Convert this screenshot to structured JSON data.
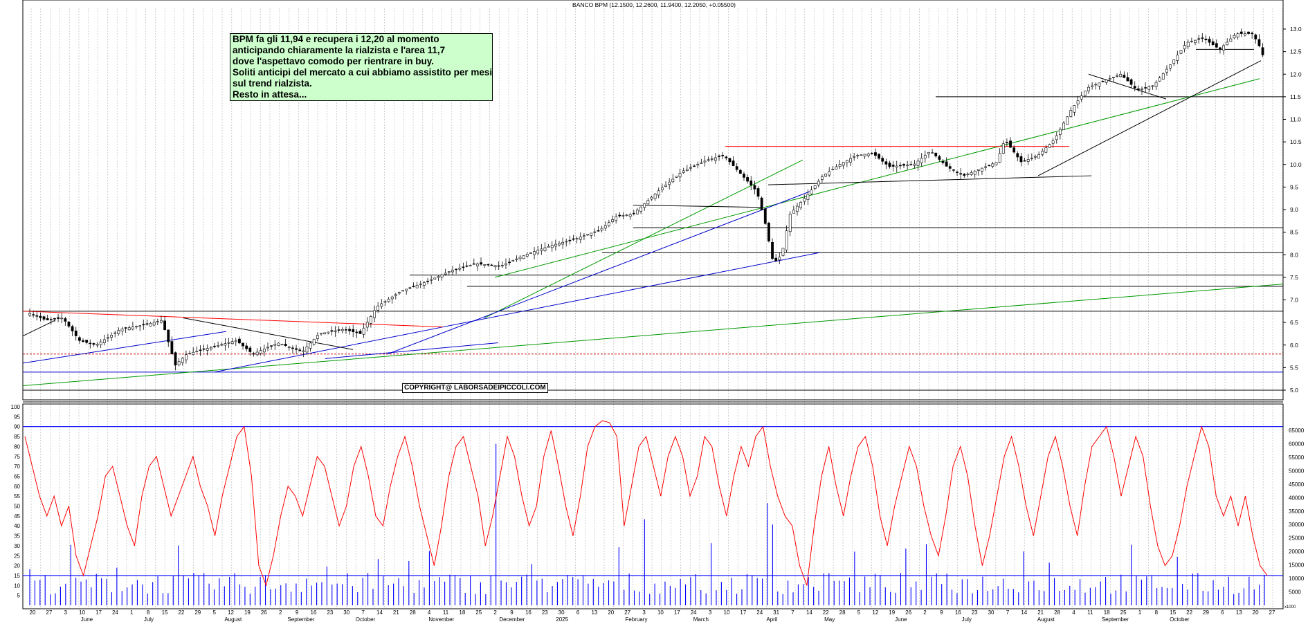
{
  "title": "BANCO BPM (12.1500, 12.2600, 11.9400, 12.2050, +0.05500)",
  "note": {
    "lines": [
      "BPM fa gli 11,94 e recupera i 12,20 al momento",
      "anticipando chiaramente la rialzista e l'area 11,7",
      "dove l'aspettavo comodo per rientrare in buy.",
      "Soliti anticipi del mercato a cui abbiamo assistito per mesi",
      "sul trend rialzista.",
      "Resto in attesa..."
    ]
  },
  "copyright": "COPYRIGHT@ LABORSADEIPICCOLI.COM",
  "volume_axis_label": "x1000",
  "colors": {
    "price_ticks": "#000000",
    "oscillator": "#ff0000",
    "volume": "#0000ff",
    "trend_green": "#009900",
    "trend_blue": "#0000cc",
    "trend_red": "#ff0000",
    "note_bg": "#ccffcc"
  },
  "chart_data": [
    {
      "type": "candlestick",
      "title": "BANCO BPM (12.1500, 12.2600, 11.9400, 12.2050, +0.05500)",
      "ylim": [
        5.0,
        13.0
      ],
      "y_ticks": [
        5.0,
        5.5,
        6.0,
        6.5,
        7.0,
        7.5,
        8.0,
        8.5,
        9.0,
        9.5,
        10.0,
        10.5,
        11.0,
        11.5,
        12.0,
        12.5,
        13.0
      ],
      "last_bar": {
        "open": 12.15,
        "high": 12.26,
        "low": 11.94,
        "close": 12.205,
        "change": 0.055
      },
      "close_path": [
        [
          0,
          6.7
        ],
        [
          10,
          6.55
        ],
        [
          20,
          6.6
        ],
        [
          30,
          6.1
        ],
        [
          40,
          6.0
        ],
        [
          55,
          6.35
        ],
        [
          70,
          6.45
        ],
        [
          80,
          6.55
        ],
        [
          88,
          5.55
        ],
        [
          95,
          5.8
        ],
        [
          110,
          5.95
        ],
        [
          125,
          6.1
        ],
        [
          135,
          5.8
        ],
        [
          150,
          6.05
        ],
        [
          165,
          5.85
        ],
        [
          175,
          6.25
        ],
        [
          190,
          6.35
        ],
        [
          200,
          6.25
        ],
        [
          210,
          6.85
        ],
        [
          225,
          7.2
        ],
        [
          240,
          7.4
        ],
        [
          255,
          7.65
        ],
        [
          270,
          7.8
        ],
        [
          285,
          7.75
        ],
        [
          300,
          8.0
        ],
        [
          315,
          8.2
        ],
        [
          330,
          8.35
        ],
        [
          345,
          8.55
        ],
        [
          355,
          8.85
        ],
        [
          365,
          8.9
        ],
        [
          380,
          9.4
        ],
        [
          395,
          9.85
        ],
        [
          410,
          10.1
        ],
        [
          420,
          10.2
        ],
        [
          430,
          9.8
        ],
        [
          440,
          9.4
        ],
        [
          445,
          8.7
        ],
        [
          450,
          7.8
        ],
        [
          455,
          8.0
        ],
        [
          460,
          8.9
        ],
        [
          470,
          9.3
        ],
        [
          480,
          9.75
        ],
        [
          490,
          10.0
        ],
        [
          500,
          10.2
        ],
        [
          510,
          10.25
        ],
        [
          520,
          9.95
        ],
        [
          535,
          10.0
        ],
        [
          545,
          10.3
        ],
        [
          555,
          9.95
        ],
        [
          565,
          9.75
        ],
        [
          575,
          9.9
        ],
        [
          585,
          10.05
        ],
        [
          590,
          10.55
        ],
        [
          600,
          10.05
        ],
        [
          610,
          10.2
        ],
        [
          620,
          10.55
        ],
        [
          630,
          11.2
        ],
        [
          640,
          11.7
        ],
        [
          650,
          11.85
        ],
        [
          660,
          12.0
        ],
        [
          670,
          11.65
        ],
        [
          680,
          11.75
        ],
        [
          690,
          12.2
        ],
        [
          700,
          12.7
        ],
        [
          710,
          12.8
        ],
        [
          720,
          12.55
        ],
        [
          730,
          12.9
        ],
        [
          740,
          12.9
        ],
        [
          745,
          12.55
        ],
        [
          748,
          12.2
        ]
      ],
      "horizontal_levels": [
        5.0,
        5.4,
        5.8,
        6.75,
        7.3,
        7.55,
        8.05,
        8.6,
        11.5
      ],
      "resistance_red": 10.4,
      "support_black_lines": [
        9.1,
        9.6,
        12.5
      ]
    },
    {
      "type": "line",
      "name": "oscillator",
      "ylim": [
        0,
        100
      ],
      "y_ticks": [
        5,
        10,
        15,
        20,
        25,
        30,
        35,
        40,
        45,
        50,
        55,
        60,
        65,
        70,
        75,
        80,
        85,
        90,
        95,
        100
      ],
      "reference_levels": [
        15,
        90
      ],
      "values": [
        85,
        70,
        55,
        45,
        55,
        40,
        50,
        25,
        15,
        30,
        45,
        65,
        70,
        55,
        40,
        30,
        55,
        70,
        75,
        60,
        45,
        55,
        65,
        75,
        60,
        50,
        35,
        55,
        70,
        85,
        90,
        65,
        20,
        10,
        25,
        45,
        60,
        55,
        45,
        60,
        75,
        70,
        55,
        40,
        50,
        70,
        80,
        65,
        45,
        40,
        60,
        75,
        85,
        70,
        50,
        35,
        20,
        40,
        65,
        80,
        85,
        70,
        55,
        30,
        45,
        65,
        85,
        75,
        55,
        40,
        50,
        75,
        88,
        70,
        50,
        35,
        55,
        80,
        90,
        93,
        92,
        85,
        40,
        60,
        80,
        85,
        70,
        55,
        75,
        85,
        75,
        55,
        65,
        85,
        80,
        60,
        45,
        65,
        80,
        70,
        85,
        90,
        70,
        55,
        45,
        40,
        20,
        10,
        40,
        65,
        80,
        60,
        45,
        65,
        80,
        85,
        70,
        45,
        30,
        50,
        65,
        80,
        70,
        50,
        35,
        25,
        45,
        70,
        80,
        65,
        40,
        20,
        35,
        55,
        75,
        85,
        70,
        50,
        35,
        55,
        75,
        85,
        70,
        50,
        35,
        60,
        80,
        85,
        90,
        75,
        55,
        70,
        85,
        75,
        50,
        30,
        20,
        25,
        40,
        60,
        75,
        90,
        80,
        55,
        45,
        55,
        40,
        55,
        35,
        20,
        15
      ]
    },
    {
      "type": "bar",
      "name": "volume",
      "unit": "x1000",
      "ylim": [
        0,
        65000
      ],
      "y_ticks": [
        5000,
        10000,
        15000,
        20000,
        25000,
        30000,
        35000,
        40000,
        45000,
        50000,
        55000,
        60000,
        65000
      ],
      "spikes": [
        {
          "position": 0.375,
          "value": 60000
        },
        {
          "position": 0.495,
          "value": 32000
        },
        {
          "position": 0.595,
          "value": 38000
        },
        {
          "position": 0.6,
          "value": 30000
        },
        {
          "position": 0.8,
          "value": 20000
        },
        {
          "position": 0.925,
          "value": 18000
        }
      ],
      "typical_value": 9000
    }
  ],
  "x_axis": {
    "day_labels": [
      "20",
      "27",
      "3",
      "10",
      "17",
      "24",
      "1",
      "8",
      "15",
      "22",
      "29",
      "5",
      "12",
      "19",
      "26",
      "2",
      "9",
      "16",
      "23",
      "30",
      "7",
      "14",
      "21",
      "28",
      "4",
      "11",
      "18",
      "25",
      "2",
      "9",
      "16",
      "23",
      "30",
      "6",
      "13",
      "20",
      "27",
      "3",
      "10",
      "17",
      "24",
      "3",
      "10",
      "17",
      "24",
      "31",
      "7",
      "14",
      "22",
      "28",
      "5",
      "12",
      "19",
      "26",
      "2",
      "9",
      "16",
      "23",
      "30",
      "7",
      "14",
      "21",
      "28",
      "4",
      "11",
      "18",
      "25",
      "1",
      "8",
      "15",
      "22",
      "29",
      "6",
      "13",
      "20",
      "27"
    ],
    "month_labels": [
      {
        "label": "June",
        "pos": 0.046
      },
      {
        "label": "July",
        "pos": 0.096
      },
      {
        "label": "August",
        "pos": 0.16
      },
      {
        "label": "September",
        "pos": 0.21
      },
      {
        "label": "October",
        "pos": 0.264
      },
      {
        "label": "November",
        "pos": 0.322
      },
      {
        "label": "December",
        "pos": 0.378
      },
      {
        "label": "2025",
        "pos": 0.423
      },
      {
        "label": "February",
        "pos": 0.478
      },
      {
        "label": "March",
        "pos": 0.532
      },
      {
        "label": "April",
        "pos": 0.59
      },
      {
        "label": "May",
        "pos": 0.636
      },
      {
        "label": "June",
        "pos": 0.692
      },
      {
        "label": "July",
        "pos": 0.745
      },
      {
        "label": "August",
        "pos": 0.805
      },
      {
        "label": "September",
        "pos": 0.856
      },
      {
        "label": "October",
        "pos": 0.91
      }
    ]
  }
}
